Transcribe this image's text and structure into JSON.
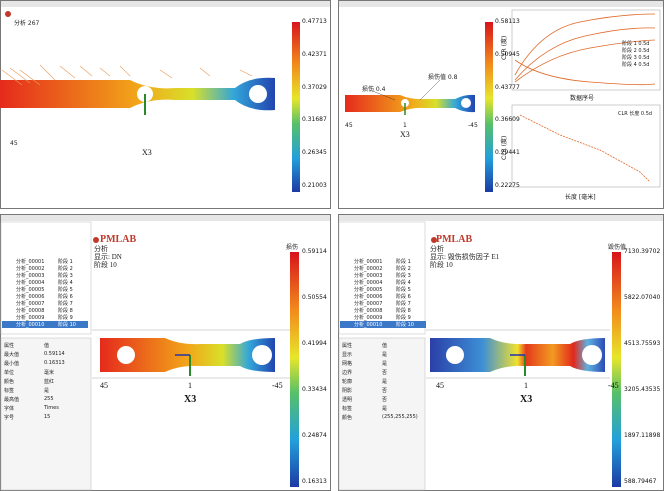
{
  "panels": [
    {
      "header": "分析 267",
      "colorbar": [
        "0.47713",
        "0.42371",
        "0.37029",
        "0.31687",
        "0.26345",
        "0.21003"
      ],
      "axis": {
        "left": "45",
        "center": "X3"
      }
    },
    {
      "colorbar": [
        "0.58113",
        "0.50945",
        "0.43777",
        "0.36609",
        "0.29441",
        "0.22275"
      ],
      "tags": [
        "损伤 0.4",
        "损伤值 0.8"
      ],
      "axis": {
        "left": "45",
        "mid": "1",
        "right": "-45",
        "center": "X3"
      },
      "chart1": {
        "xlabel": "数据序号",
        "ylabel": "CLR (度)",
        "legend": [
          "阶段 1 0.5d",
          "阶段 2 0.5d",
          "阶段 3 0.5d",
          "阶段 4 0.5d"
        ]
      },
      "chart2": {
        "xlabel": "长度 [毫米]",
        "ylabel": "CLR (度)",
        "legend": [
          "CLR 长度 0.5d"
        ]
      }
    },
    {
      "logo": "PMLAB",
      "header": [
        "分析",
        "显示: DN",
        "阶段 10"
      ],
      "colorbar_title": "损伤",
      "colorbar": [
        "0.59114",
        "0.50554",
        "0.41994",
        "0.33434",
        "0.24874",
        "0.16313"
      ],
      "axis": {
        "left": "45",
        "mid": "1",
        "right": "-45",
        "center": "X3"
      },
      "tree": [
        "分析_00001",
        "分析_00002",
        "分析_00003",
        "分析_00004",
        "分析_00005",
        "分析_00006",
        "分析_00007",
        "分析_00008",
        "分析_00009",
        "分析_00010"
      ],
      "stages": [
        "阶段 1",
        "阶段 2",
        "阶段 3",
        "阶段 4",
        "阶段 5",
        "阶段 6",
        "阶段 7",
        "阶段 8",
        "阶段 9",
        "阶段 10"
      ],
      "props": [
        [
          "属性",
          "值"
        ],
        [
          "最大值",
          "0.59114"
        ],
        [
          "最小值",
          "0.16313"
        ],
        [
          "单位",
          "毫米"
        ],
        [
          "颜色",
          "蓝红"
        ],
        [
          "标签",
          "是"
        ],
        [
          "最高值",
          "255"
        ],
        [
          "字体",
          "Times"
        ],
        [
          "字号",
          "15"
        ]
      ]
    },
    {
      "logo": "PMLAB",
      "header": [
        "分析",
        "显示: 毁伤损伤因子 E1",
        "阶段 10"
      ],
      "colorbar_title": "毁伤值",
      "colorbar": [
        "7130.39702",
        "5822.07040",
        "4513.75593",
        "3205.43535",
        "1897.11898",
        "588.79467"
      ],
      "axis": {
        "left": "45",
        "mid": "1",
        "right": "-45",
        "center": "X3"
      },
      "tree": [
        "分析_00001",
        "分析_00002",
        "分析_00003",
        "分析_00004",
        "分析_00005",
        "分析_00006",
        "分析_00007",
        "分析_00008",
        "分析_00009",
        "分析_00010"
      ],
      "stages": [
        "阶段 1",
        "阶段 2",
        "阶段 3",
        "阶段 4",
        "阶段 5",
        "阶段 6",
        "阶段 7",
        "阶段 8",
        "阶段 9",
        "阶段 10"
      ],
      "props": [
        [
          "属性",
          "值"
        ],
        [
          "显示",
          "是"
        ],
        [
          "网格",
          "是"
        ],
        [
          "边界",
          "否"
        ],
        [
          "轮廓",
          "是"
        ],
        [
          "阴影",
          "否"
        ],
        [
          "透明",
          "否"
        ],
        [
          "标签",
          "是"
        ],
        [
          "颜色",
          "(255,255,255)"
        ]
      ]
    }
  ]
}
